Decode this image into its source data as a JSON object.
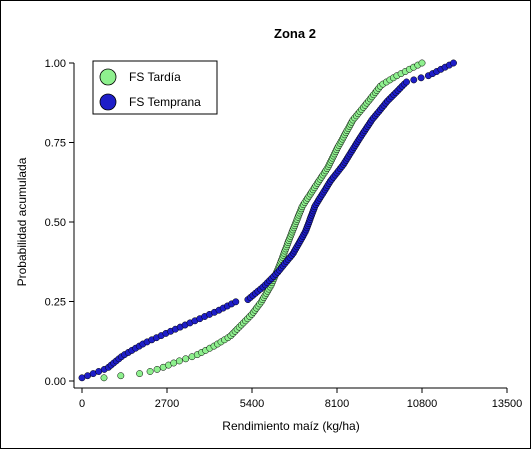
{
  "chart_data": {
    "type": "scatter",
    "title": "Zona 2",
    "xlabel": "Rendimiento maíz (kg/ha)",
    "ylabel": "Probabilidad acumulada",
    "xlim": [
      0,
      13500
    ],
    "ylim": [
      0,
      1
    ],
    "xticks": [
      0,
      2700,
      5400,
      8100,
      10800,
      13500
    ],
    "yticks": [
      0,
      0.25,
      0.5,
      0.75,
      1
    ],
    "xtick_labels": [
      "0",
      "2700",
      "5400",
      "8100",
      "10800",
      "13500"
    ],
    "ytick_labels": [
      "0.00",
      "0.25",
      "0.50",
      "0.75",
      "1.00"
    ],
    "legend_position": "top-left",
    "grid": false,
    "series": [
      {
        "name": "FS Tardía",
        "color": "#8ef08e",
        "curve": [
          [
            0,
            0.01
          ],
          [
            700,
            0.01
          ],
          [
            1500,
            0.02
          ],
          [
            2000,
            0.025
          ],
          [
            2500,
            0.04
          ],
          [
            3000,
            0.06
          ],
          [
            3600,
            0.08
          ],
          [
            4200,
            0.11
          ],
          [
            4700,
            0.14
          ],
          [
            5000,
            0.17
          ],
          [
            5400,
            0.21
          ],
          [
            5700,
            0.25
          ],
          [
            6000,
            0.3
          ],
          [
            6300,
            0.37
          ],
          [
            6600,
            0.45
          ],
          [
            7000,
            0.55
          ],
          [
            7400,
            0.61
          ],
          [
            7800,
            0.67
          ],
          [
            8100,
            0.73
          ],
          [
            8600,
            0.82
          ],
          [
            9100,
            0.88
          ],
          [
            9500,
            0.93
          ],
          [
            10000,
            0.96
          ],
          [
            10500,
            0.985
          ],
          [
            10800,
            1.0
          ]
        ],
        "n_points": 150
      },
      {
        "name": "FS Temprana",
        "color": "#1e1ec8",
        "curve": [
          [
            0,
            0.01
          ],
          [
            800,
            0.04
          ],
          [
            1300,
            0.08
          ],
          [
            2000,
            0.12
          ],
          [
            2900,
            0.16
          ],
          [
            3600,
            0.19
          ],
          [
            4300,
            0.22
          ],
          [
            4900,
            0.25
          ],
          [
            5200,
            0.25
          ],
          [
            5800,
            0.3
          ],
          [
            6200,
            0.34
          ],
          [
            6700,
            0.4
          ],
          [
            7100,
            0.47
          ],
          [
            7400,
            0.55
          ],
          [
            7900,
            0.63
          ],
          [
            8300,
            0.68
          ],
          [
            8800,
            0.76
          ],
          [
            9200,
            0.82
          ],
          [
            9700,
            0.88
          ],
          [
            10300,
            0.94
          ],
          [
            11000,
            0.96
          ],
          [
            11800,
            1.0
          ]
        ],
        "n_points": 150
      }
    ]
  }
}
